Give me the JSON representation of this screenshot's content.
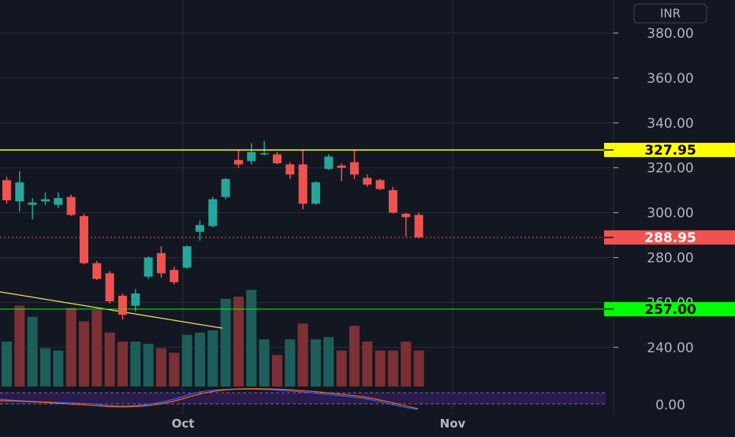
{
  "currency": "INR",
  "colors": {
    "background": "#131722",
    "grid": "#2a2e39",
    "up": "#26a69a",
    "down": "#ef5350",
    "resistance": "#ffff00",
    "support": "#00ff00",
    "trendline": "#f5e35a",
    "oscillator_band": "#2a1b4a",
    "osc_line_1": "#2962ff",
    "osc_line_2": "#ff6d00"
  },
  "chart_data": {
    "type": "candlestick",
    "y_ticks": [
      "380.00",
      "360.00",
      "340.00",
      "320.00",
      "300.00",
      "280.00",
      "260.00",
      "240.00"
    ],
    "ylim": [
      233.5,
      390
    ],
    "x_ticks": [
      "Oct",
      "Nov"
    ],
    "oscillator_tick": "0.00",
    "levels": [
      {
        "name": "resistance",
        "label": "327.95",
        "value": 327.95
      },
      {
        "name": "last-price",
        "label": "288.95",
        "value": 288.95
      },
      {
        "name": "support",
        "label": "257.00",
        "value": 257.0
      }
    ],
    "candles": [
      {
        "o": 314.5,
        "h": 316.0,
        "l": 304.0,
        "c": 305.5
      },
      {
        "o": 305.0,
        "h": 318.5,
        "l": 300.5,
        "c": 313.5
      },
      {
        "o": 303.5,
        "h": 306.5,
        "l": 297.0,
        "c": 304.5
      },
      {
        "o": 305.0,
        "h": 309.0,
        "l": 303.5,
        "c": 306.0
      },
      {
        "o": 303.5,
        "h": 309.0,
        "l": 302.0,
        "c": 306.5
      },
      {
        "o": 307.0,
        "h": 308.0,
        "l": 298.5,
        "c": 299.0
      },
      {
        "o": 298.5,
        "h": 299.5,
        "l": 277.0,
        "c": 277.5
      },
      {
        "o": 277.5,
        "h": 278.5,
        "l": 270.0,
        "c": 270.5
      },
      {
        "o": 273.0,
        "h": 274.0,
        "l": 259.5,
        "c": 260.5
      },
      {
        "o": 263.0,
        "h": 264.0,
        "l": 252.5,
        "c": 254.5
      },
      {
        "o": 258.5,
        "h": 266.0,
        "l": 256.0,
        "c": 264.0
      },
      {
        "o": 271.5,
        "h": 280.5,
        "l": 270.5,
        "c": 280.0
      },
      {
        "o": 282.0,
        "h": 285.0,
        "l": 271.0,
        "c": 273.0
      },
      {
        "o": 274.5,
        "h": 276.0,
        "l": 268.0,
        "c": 269.0
      },
      {
        "o": 275.5,
        "h": 285.5,
        "l": 275.0,
        "c": 285.0
      },
      {
        "o": 291.5,
        "h": 296.5,
        "l": 287.5,
        "c": 294.5
      },
      {
        "o": 294.0,
        "h": 307.0,
        "l": 293.5,
        "c": 306.0
      },
      {
        "o": 307.0,
        "h": 315.5,
        "l": 306.0,
        "c": 315.0
      },
      {
        "o": 323.5,
        "h": 328.0,
        "l": 320.0,
        "c": 321.5
      },
      {
        "o": 323.0,
        "h": 331.0,
        "l": 321.5,
        "c": 327.0
      },
      {
        "o": 326.5,
        "h": 332.0,
        "l": 325.5,
        "c": 326.5
      },
      {
        "o": 326.0,
        "h": 327.0,
        "l": 321.5,
        "c": 322.0
      },
      {
        "o": 321.5,
        "h": 322.5,
        "l": 315.0,
        "c": 317.0
      },
      {
        "o": 321.5,
        "h": 328.0,
        "l": 301.5,
        "c": 304.0
      },
      {
        "o": 304.0,
        "h": 314.0,
        "l": 303.5,
        "c": 313.5
      },
      {
        "o": 319.5,
        "h": 326.0,
        "l": 319.0,
        "c": 325.0
      },
      {
        "o": 321.0,
        "h": 322.0,
        "l": 314.0,
        "c": 320.0
      },
      {
        "o": 322.5,
        "h": 328.0,
        "l": 315.0,
        "c": 317.0
      },
      {
        "o": 315.5,
        "h": 317.0,
        "l": 311.5,
        "c": 312.5
      },
      {
        "o": 314.5,
        "h": 315.0,
        "l": 310.0,
        "c": 310.5
      },
      {
        "o": 310.0,
        "h": 311.5,
        "l": 299.5,
        "c": 300.0
      },
      {
        "o": 299.5,
        "h": 300.0,
        "l": 289.5,
        "c": 298.0
      },
      {
        "o": 299.0,
        "h": 300.0,
        "l": 288.5,
        "c": 289.0
      }
    ],
    "volume": [
      {
        "v": 20,
        "dir": "up"
      },
      {
        "v": 36,
        "dir": "down"
      },
      {
        "v": 31,
        "dir": "up"
      },
      {
        "v": 17,
        "dir": "up"
      },
      {
        "v": 16,
        "dir": "up"
      },
      {
        "v": 35,
        "dir": "down"
      },
      {
        "v": 29,
        "dir": "down"
      },
      {
        "v": 34,
        "dir": "down"
      },
      {
        "v": 24,
        "dir": "down"
      },
      {
        "v": 20,
        "dir": "down"
      },
      {
        "v": 20,
        "dir": "up"
      },
      {
        "v": 19,
        "dir": "up"
      },
      {
        "v": 17,
        "dir": "down"
      },
      {
        "v": 15,
        "dir": "down"
      },
      {
        "v": 23,
        "dir": "up"
      },
      {
        "v": 24,
        "dir": "up"
      },
      {
        "v": 25,
        "dir": "up"
      },
      {
        "v": 39,
        "dir": "up"
      },
      {
        "v": 40,
        "dir": "down"
      },
      {
        "v": 43,
        "dir": "up"
      },
      {
        "v": 21,
        "dir": "up"
      },
      {
        "v": 14,
        "dir": "down"
      },
      {
        "v": 21,
        "dir": "up"
      },
      {
        "v": 28,
        "dir": "down"
      },
      {
        "v": 21,
        "dir": "up"
      },
      {
        "v": 22,
        "dir": "up"
      },
      {
        "v": 16,
        "dir": "down"
      },
      {
        "v": 27,
        "dir": "down"
      },
      {
        "v": 20,
        "dir": "down"
      },
      {
        "v": 16,
        "dir": "down"
      },
      {
        "v": 16,
        "dir": "down"
      },
      {
        "v": 20,
        "dir": "down"
      },
      {
        "v": 16,
        "dir": "down"
      }
    ]
  }
}
